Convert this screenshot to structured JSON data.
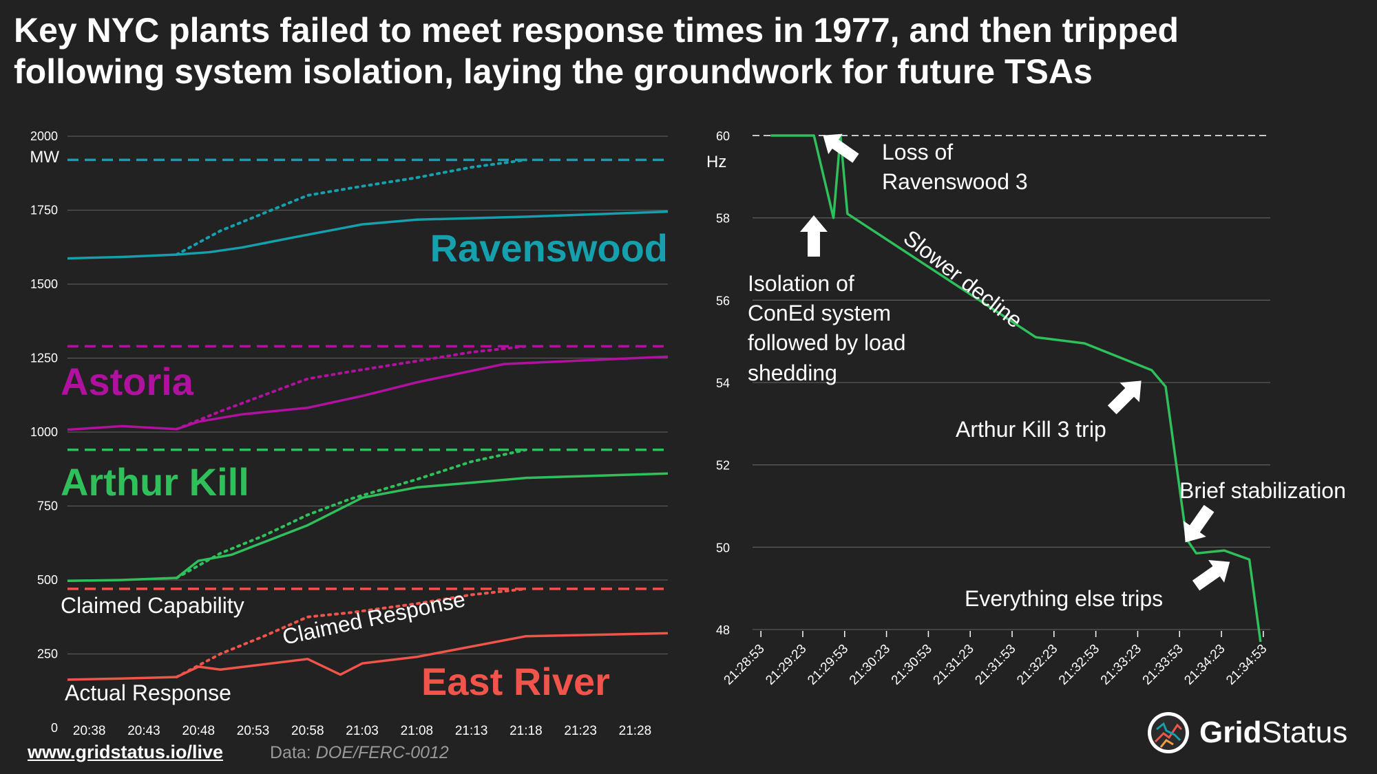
{
  "title": {
    "line1": "Key NYC plants failed to meet response times in 1977, and then tripped",
    "line2": "following system isolation, laying the groundwork for future TSAs"
  },
  "footer": {
    "link": "www.gridstatus.io/live",
    "source_prefix": "Data: ",
    "source_name": "DOE/FERC-0012",
    "logo_bold": "Grid",
    "logo_rest": "Status"
  },
  "colors": {
    "background": "#222222",
    "ravenswood": "#14a0ac",
    "astoria": "#b0129f",
    "arthur_kill": "#2fc05c",
    "east_river": "#f0544a",
    "frequency": "#2fc05c"
  },
  "chart_data": [
    {
      "type": "line",
      "title": "",
      "ylabel": "MW",
      "ylim": [
        0,
        2000
      ],
      "yticks": [
        0,
        250,
        500,
        750,
        1000,
        1250,
        1500,
        1750,
        2000
      ],
      "ytick_labels": [
        "0",
        "250",
        "500",
        "750",
        "1000",
        "1250",
        "1500",
        "1750",
        "2000"
      ],
      "xlim": [
        -2,
        53
      ],
      "x_tick_labels": [
        "20:38",
        "20:43",
        "20:48",
        "20:53",
        "20:58",
        "21:03",
        "21:08",
        "21:13",
        "21:18",
        "21:23",
        "21:28"
      ],
      "x_tick_positions": [
        0,
        5,
        10,
        15,
        20,
        25,
        30,
        35,
        40,
        45,
        50
      ],
      "x_unit": "minutes after 20:38",
      "series": [
        {
          "name": "Ravenswood",
          "key": "ravenswood",
          "claimed_capability": 1920,
          "actual_response": {
            "x": [
              -2,
              3,
              8,
              11,
              14,
              19,
              25,
              30,
              40,
              53
            ],
            "y": [
              1587,
              1592,
              1600,
              1608,
              1624,
              1660,
              1702,
              1718,
              1728,
              1745
            ]
          },
          "claimed_response": {
            "x": [
              8,
              12,
              16,
              20,
              24,
              30,
              35,
              40
            ],
            "y": [
              1600,
              1680,
              1740,
              1800,
              1825,
              1860,
              1895,
              1920
            ]
          }
        },
        {
          "name": "Astoria",
          "key": "astoria",
          "claimed_capability": 1290,
          "actual_response": {
            "x": [
              -2,
              3,
              8,
              10,
              14,
              20,
              25,
              30,
              38,
              53
            ],
            "y": [
              1008,
              1020,
              1010,
              1035,
              1060,
              1082,
              1122,
              1168,
              1230,
              1255
            ]
          },
          "claimed_response": {
            "x": [
              8,
              12,
              16,
              20,
              24,
              30,
              35,
              40
            ],
            "y": [
              1010,
              1070,
              1125,
              1180,
              1205,
              1240,
              1270,
              1290
            ]
          }
        },
        {
          "name": "Arthur Kill",
          "key": "arthur_kill",
          "claimed_capability": 940,
          "actual_response": {
            "x": [
              -2,
              3,
              8,
              10,
              13,
              20,
              25,
              30,
              40,
              53
            ],
            "y": [
              497,
              500,
              507,
              565,
              585,
              685,
              778,
              813,
              845,
              860
            ]
          },
          "claimed_response": {
            "x": [
              8,
              12,
              16,
              20,
              24,
              30,
              35,
              40
            ],
            "y": [
              507,
              590,
              650,
              720,
              775,
              840,
              900,
              940
            ]
          }
        },
        {
          "name": "East River",
          "key": "east_river",
          "claimed_capability": 470,
          "actual_response": {
            "x": [
              -2,
              3,
              8,
              10,
              12,
              20,
              23,
              25,
              30,
              40,
              53
            ],
            "y": [
              163,
              167,
              172,
              207,
              197,
              233,
              180,
              218,
              240,
              310,
              320
            ]
          },
          "claimed_response": {
            "x": [
              8,
              12,
              16,
              20,
              24,
              30,
              35,
              40
            ],
            "y": [
              172,
              250,
              310,
              375,
              390,
              420,
              450,
              470
            ]
          }
        }
      ],
      "annotations": {
        "claimed_capability": "Claimed Capability",
        "claimed_response": "Claimed Response",
        "actual_response": "Actual Response"
      }
    },
    {
      "type": "line",
      "title": "",
      "ylabel": "Hz",
      "ylim": [
        48,
        60
      ],
      "yticks": [
        48,
        50,
        52,
        54,
        56,
        58,
        60
      ],
      "ytick_labels": [
        "48",
        "50",
        "52",
        "54",
        "56",
        "58",
        "60"
      ],
      "nominal_frequency": 60,
      "x_tick_labels": [
        "21:28:53",
        "21:29:23",
        "21:29:53",
        "21:30:23",
        "21:30:53",
        "21:31:23",
        "21:31:53",
        "21:32:23",
        "21:32:53",
        "21:33:23",
        "21:33:53",
        "21:34:23",
        "21:34:53"
      ],
      "x_tick_positions": [
        0,
        30,
        60,
        90,
        120,
        150,
        180,
        210,
        240,
        270,
        300,
        330,
        360
      ],
      "x_unit": "seconds after 21:28:53",
      "series": [
        {
          "name": "Frequency",
          "x": [
            7,
            38,
            52,
            57,
            62,
            197,
            232,
            280,
            290,
            305,
            312,
            332,
            350,
            358
          ],
          "y": [
            60.0,
            60.0,
            58.0,
            60.0,
            58.1,
            55.1,
            54.95,
            54.3,
            53.9,
            50.2,
            49.85,
            49.92,
            49.7,
            47.7
          ]
        }
      ],
      "annotations": {
        "loss_ravenswood_1": "Loss of",
        "loss_ravenswood_2": "Ravenswood 3",
        "isolation_1": "Isolation of",
        "isolation_2": "ConEd system",
        "isolation_3": "followed by load",
        "isolation_4": "shedding",
        "slower_decline": "Slower decline",
        "arthur_kill_trip": "Arthur Kill 3 trip",
        "brief_stabilization": "Brief stabilization",
        "everything_else": "Everything else trips"
      }
    }
  ]
}
